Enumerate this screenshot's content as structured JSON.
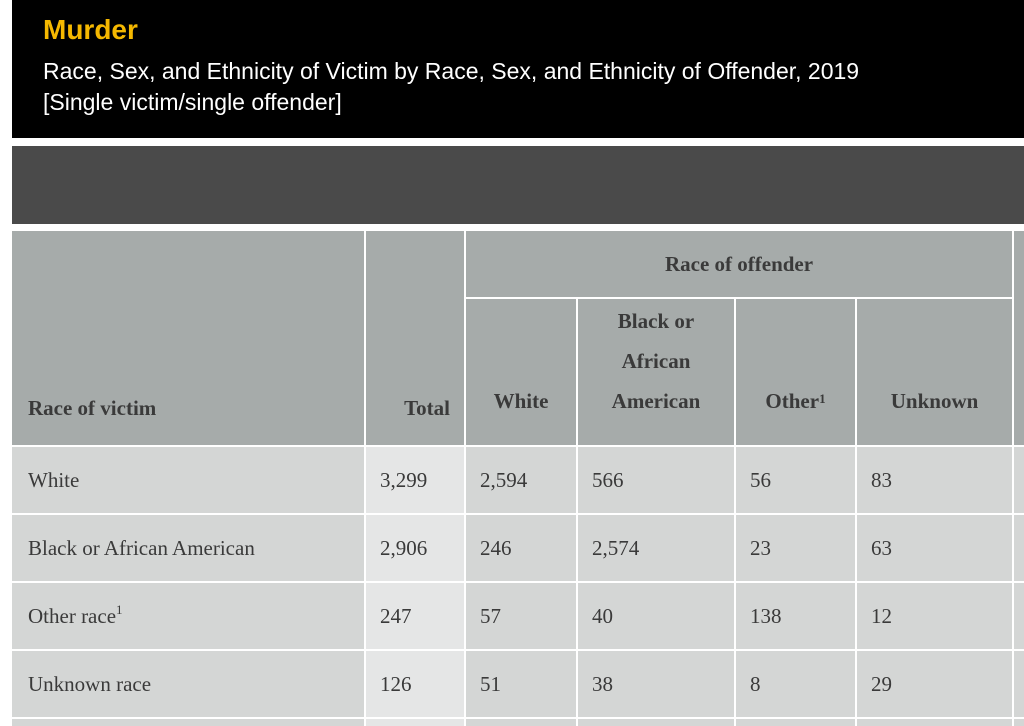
{
  "header": {
    "title": "Murder",
    "subtitle_line1": "Race, Sex, and Ethnicity of Victim by Race, Sex, and Ethnicity of Offender, 2019",
    "subtitle_line2": "[Single victim/single offender]"
  },
  "table": {
    "victim_header": "Race of victim",
    "total_header": "Total",
    "group_header": "Race of offender",
    "columns": {
      "white": "White",
      "black_line1": "Black or",
      "black_line2": "African",
      "black_line3": "American",
      "other": "Other",
      "other_sup": "1",
      "unknown": "Unknown"
    },
    "rows": [
      {
        "label": "White",
        "sup": "",
        "total": "3,299",
        "white": "2,594",
        "black": "566",
        "other": "56",
        "unknown": "83"
      },
      {
        "label": "Black or African American",
        "sup": "",
        "total": "2,906",
        "white": "246",
        "black": "2,574",
        "other": "23",
        "unknown": "63"
      },
      {
        "label": "Other race",
        "sup": "1",
        "total": "247",
        "white": "57",
        "black": "40",
        "other": "138",
        "unknown": "12"
      },
      {
        "label": "Unknown race",
        "sup": "",
        "total": "126",
        "white": "51",
        "black": "38",
        "other": "8",
        "unknown": "29"
      }
    ]
  },
  "colors": {
    "title": "#f5b800",
    "header_bg": "#000000",
    "band": "#4a4a4a",
    "th_bg": "#a6abaa",
    "cell_bg": "#d4d6d5",
    "total_bg": "#e5e6e6"
  }
}
